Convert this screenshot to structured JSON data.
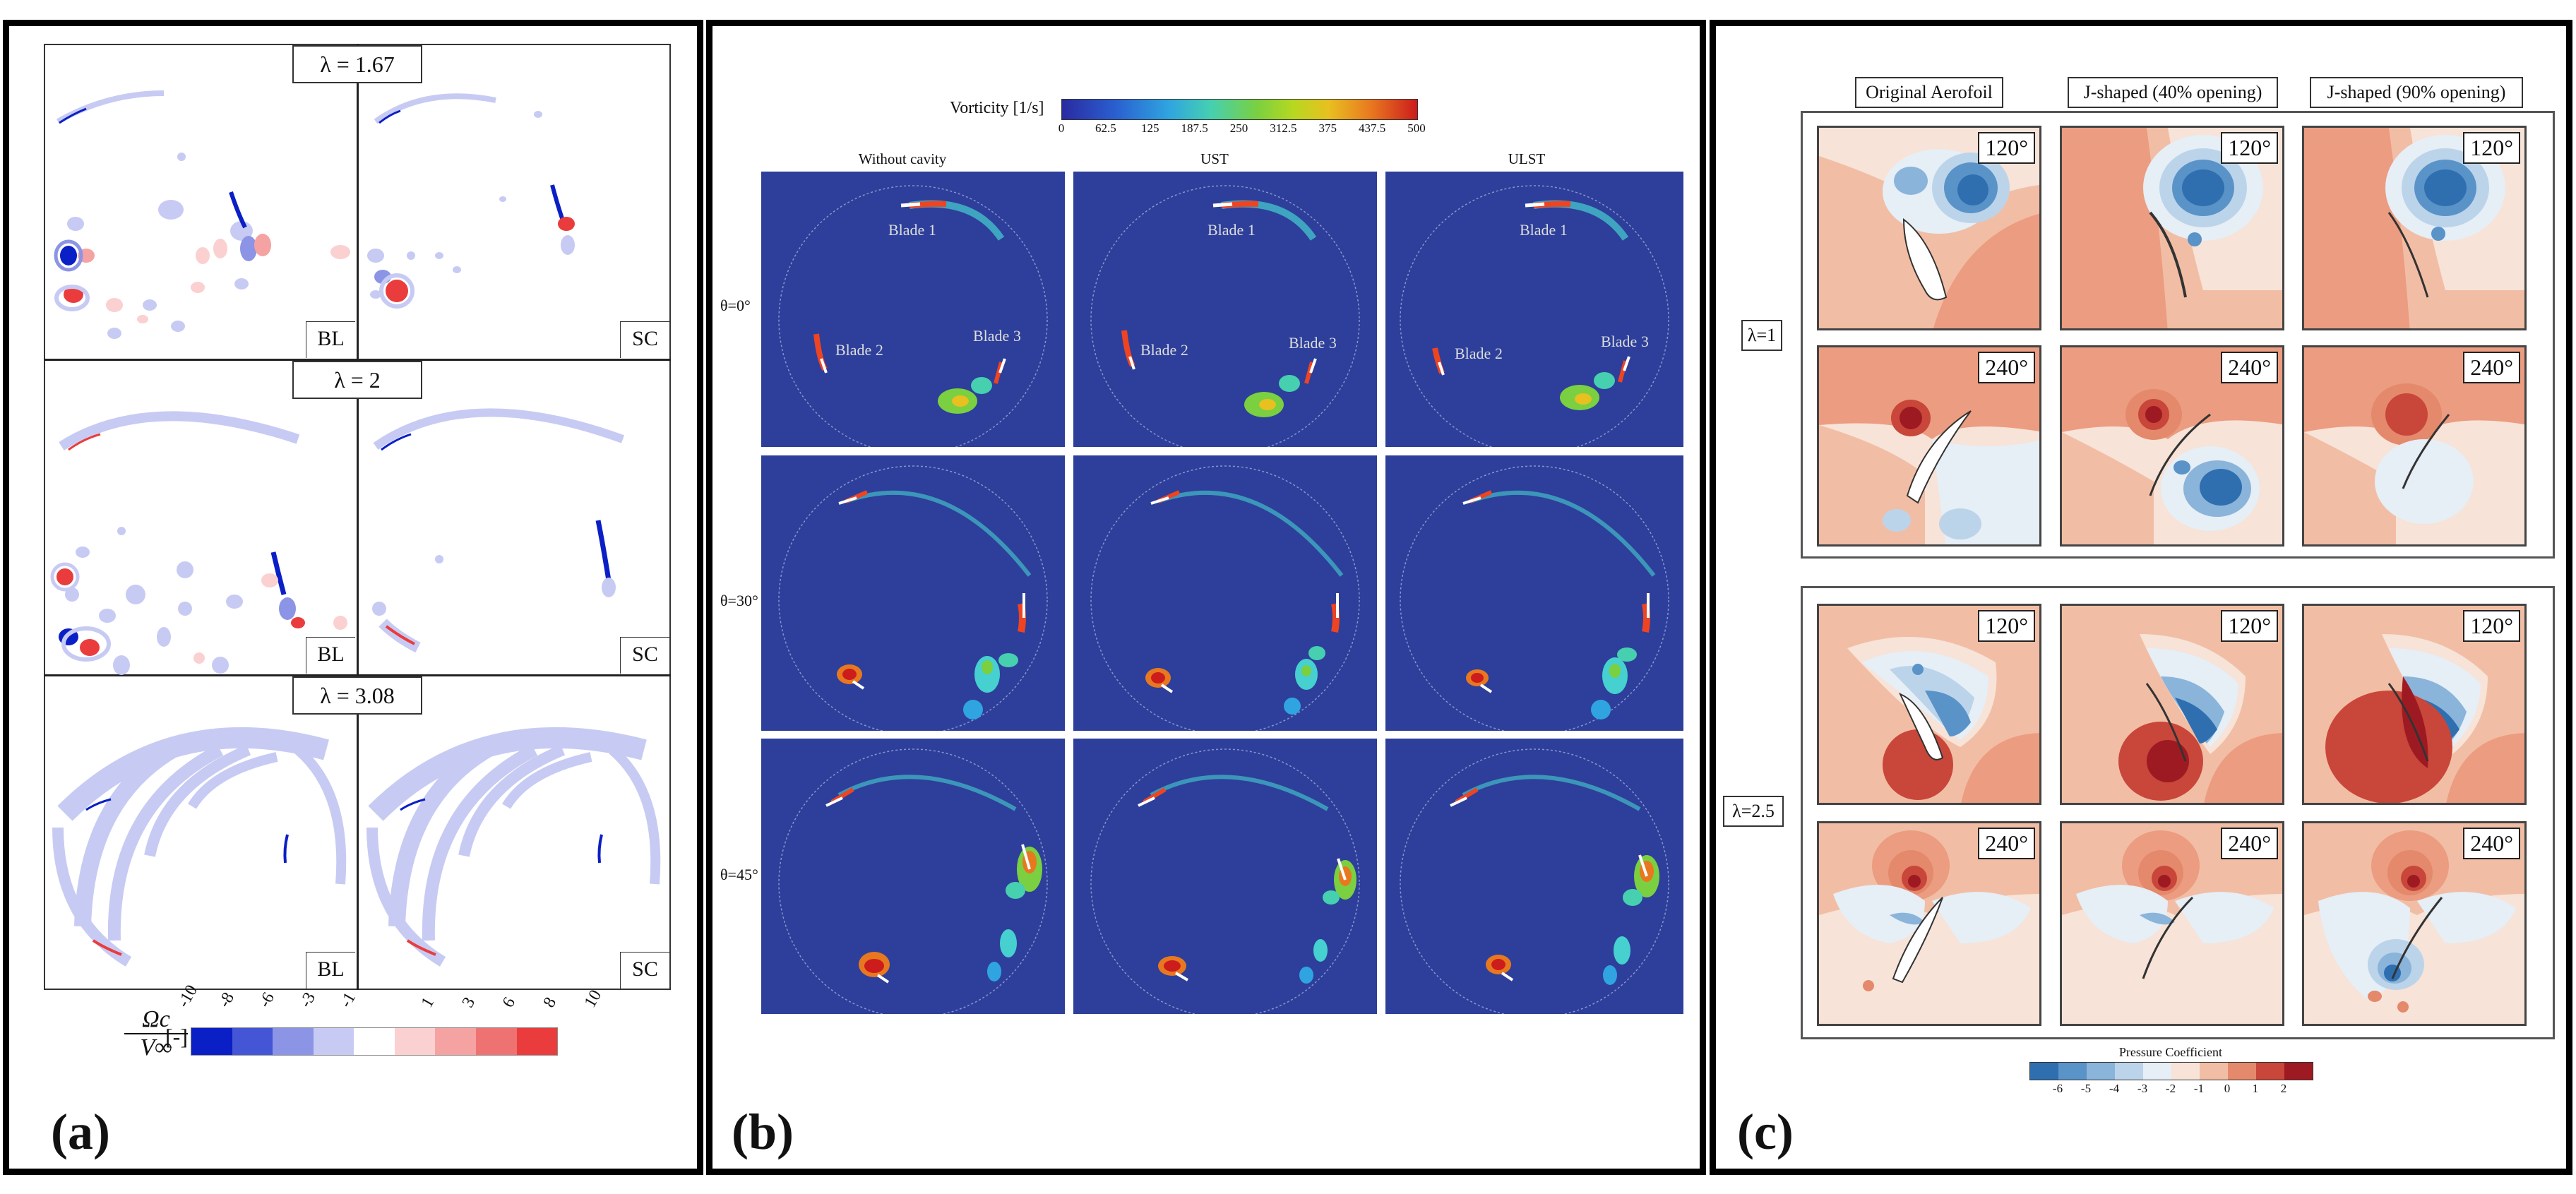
{
  "panel_a": {
    "label": "(a)",
    "lambdas": [
      "λ = 1.67",
      "λ = 2",
      "λ = 3.08"
    ],
    "col_labels": [
      "BL",
      "SC"
    ],
    "colorbar": {
      "ticks": [
        "-10",
        "-8",
        "-6",
        "-3",
        "-1",
        "1",
        "3",
        "6",
        "8",
        "10"
      ],
      "colors": [
        "#0b1fc6",
        "#4456d6",
        "#8c94e6",
        "#c7cbf3",
        "#ffffff",
        "#fbd0d0",
        "#f5a2a2",
        "#ef7272",
        "#ea3c3c"
      ],
      "symbol_num": "Ωc",
      "symbol_den": "V∞",
      "unit": "[-]"
    }
  },
  "panel_b": {
    "label": "(b)",
    "colorbar": {
      "title": "Vorticity [1/s]",
      "ticks": [
        "0",
        "62.5",
        "125",
        "187.5",
        "250",
        "312.5",
        "375",
        "437.5",
        "500"
      ]
    },
    "columns": [
      "Without cavity",
      "UST",
      "ULST"
    ],
    "rows": [
      "θ=0°",
      "θ=30°",
      "θ=45°"
    ],
    "blades": [
      "Blade 1",
      "Blade 2",
      "Blade 3"
    ]
  },
  "panel_c": {
    "label": "(c)",
    "columns": [
      "Original Aerofoil",
      "J-shaped (40% opening)",
      "J-shaped (90% opening)"
    ],
    "groups": [
      {
        "lambda": "λ=1",
        "angles": [
          "120°",
          "240°"
        ]
      },
      {
        "lambda": "λ=2.5",
        "angles": [
          "120°",
          "240°"
        ]
      }
    ],
    "colorbar": {
      "title": "Pressure Coefficient",
      "ticks": [
        "-6",
        "-5",
        "-4",
        "-3",
        "-2",
        "-1",
        "0",
        "1",
        "2"
      ],
      "colors": [
        "#2f6fb0",
        "#5a93c8",
        "#8ab4da",
        "#bcd4ea",
        "#e6eef6",
        "#f7e3d8",
        "#f1bea5",
        "#e4896b",
        "#c9463a",
        "#9e1a22"
      ]
    }
  }
}
